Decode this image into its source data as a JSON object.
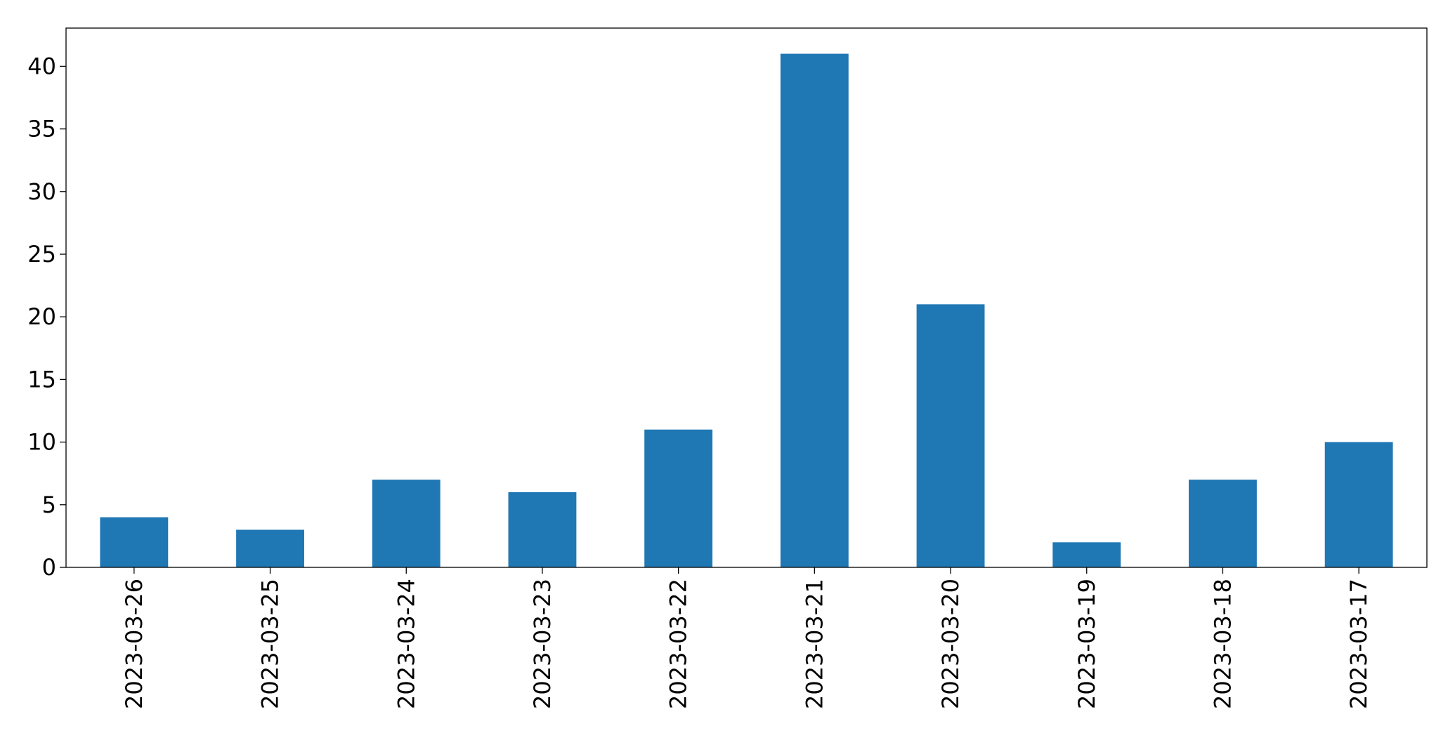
{
  "chart_data": {
    "type": "bar",
    "categories": [
      "2023-03-26",
      "2023-03-25",
      "2023-03-24",
      "2023-03-23",
      "2023-03-22",
      "2023-03-21",
      "2023-03-20",
      "2023-03-19",
      "2023-03-18",
      "2023-03-17"
    ],
    "values": [
      4,
      3,
      7,
      6,
      11,
      41,
      21,
      2,
      7,
      10
    ],
    "color": "#1f77b4",
    "ylim": [
      0,
      43.05
    ],
    "yticks": [
      0,
      5,
      10,
      15,
      20,
      25,
      30,
      35,
      40
    ],
    "grid": false
  }
}
